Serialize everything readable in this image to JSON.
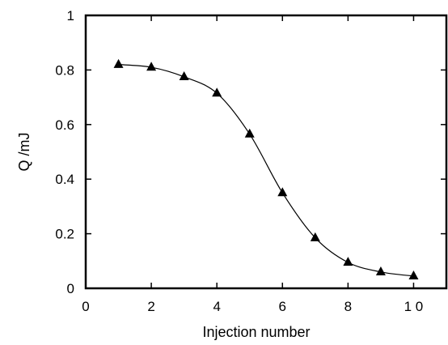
{
  "chart_data": {
    "type": "scatter",
    "title": "",
    "xlabel": "Injection  number",
    "ylabel": "Q /mJ",
    "xlim": [
      0,
      11
    ],
    "ylim": [
      0,
      1
    ],
    "xticks": [
      0,
      2,
      4,
      6,
      8,
      10
    ],
    "xtick_labels": [
      "0",
      "2",
      "4",
      "6",
      "8",
      "1 0"
    ],
    "yticks": [
      0,
      0.2,
      0.4,
      0.6,
      0.8,
      1
    ],
    "ytick_labels": [
      "0",
      "0.2",
      "0.4",
      "0.6",
      "0.8",
      "1"
    ],
    "grid": false,
    "legend": "none",
    "marker": "filled-triangle",
    "has_fit_curve": true,
    "series": [
      {
        "x": [
          1,
          2,
          3,
          4,
          5,
          6,
          7,
          8,
          9,
          10
        ],
        "y": [
          0.82,
          0.81,
          0.775,
          0.715,
          0.565,
          0.35,
          0.185,
          0.095,
          0.06,
          0.045
        ]
      }
    ],
    "colors": {
      "marker": "#000000",
      "line": "#000000",
      "axes": "#000000"
    }
  }
}
